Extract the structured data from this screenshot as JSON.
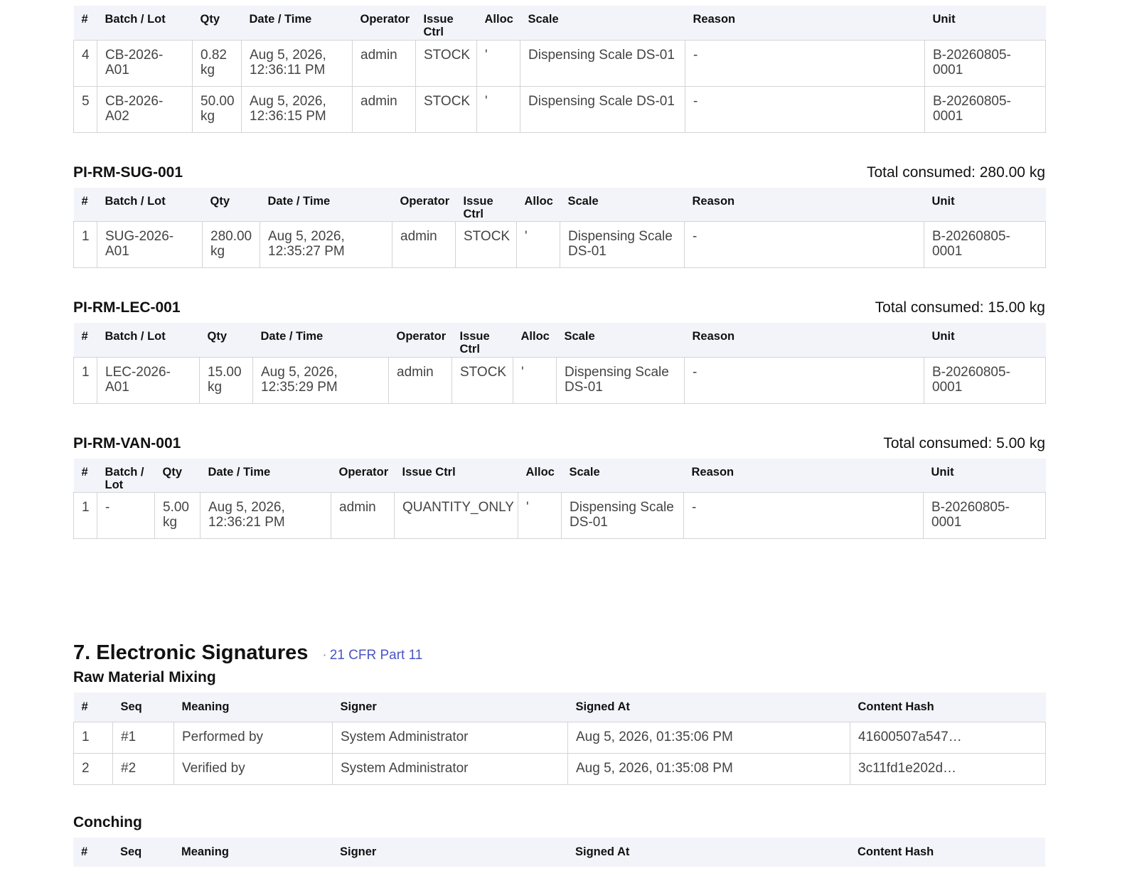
{
  "continued_table": {
    "headers": [
      "#",
      "Batch / Lot",
      "Qty",
      "Date / Time",
      "Operator",
      "Issue Ctrl",
      "Alloc",
      "Scale",
      "Reason",
      "Unit"
    ],
    "rows": [
      [
        "4",
        "CB-2026-A01",
        "0.82 kg",
        "Aug 5, 2026, 12:36:11 PM",
        "admin",
        "STOCK",
        "'",
        "Dispensing Scale DS-01",
        "-",
        "B-20260805-0001"
      ],
      [
        "5",
        "CB-2026-A02",
        "50.00 kg",
        "Aug 5, 2026, 12:36:15 PM",
        "admin",
        "STOCK",
        "'",
        "Dispensing Scale DS-01",
        "-",
        "B-20260805-0001"
      ]
    ]
  },
  "materials": [
    {
      "code": "PI-RM-SUG-001",
      "total": "Total consumed: 280.00 kg",
      "headers": [
        "#",
        "Batch / Lot",
        "Qty",
        "Date / Time",
        "Operator",
        "Issue Ctrl",
        "Alloc",
        "Scale",
        "Reason",
        "Unit"
      ],
      "rows": [
        [
          "1",
          "SUG-2026-A01",
          "280.00 kg",
          "Aug 5, 2026, 12:35:27 PM",
          "admin",
          "STOCK",
          "'",
          "Dispensing Scale DS-01",
          "-",
          "B-20260805-0001"
        ]
      ]
    },
    {
      "code": "PI-RM-LEC-001",
      "total": "Total consumed: 15.00 kg",
      "headers": [
        "#",
        "Batch / Lot",
        "Qty",
        "Date / Time",
        "Operator",
        "Issue Ctrl",
        "Alloc",
        "Scale",
        "Reason",
        "Unit"
      ],
      "rows": [
        [
          "1",
          "LEC-2026-A01",
          "15.00 kg",
          "Aug 5, 2026, 12:35:29 PM",
          "admin",
          "STOCK",
          "'",
          "Dispensing Scale DS-01",
          "-",
          "B-20260805-0001"
        ]
      ]
    },
    {
      "code": "PI-RM-VAN-001",
      "total": "Total consumed: 5.00 kg",
      "headers": [
        "#",
        "Batch / Lot",
        "Qty",
        "Date / Time",
        "Operator",
        "Issue Ctrl",
        "Alloc",
        "Scale",
        "Reason",
        "Unit"
      ],
      "rows": [
        [
          "1",
          "-",
          "5.00 kg",
          "Aug 5, 2026, 12:36:21 PM",
          "admin",
          "QUANTITY_ONLY",
          "'",
          "Dispensing Scale DS-01",
          "-",
          "B-20260805-0001"
        ]
      ]
    }
  ],
  "signatures": {
    "title": "7. Electronic Signatures",
    "badge_separator": "·",
    "badge": "21 CFR Part 11",
    "headers": [
      "#",
      "Seq",
      "Meaning",
      "Signer",
      "Signed At",
      "Content Hash"
    ],
    "groups": [
      {
        "name": "Raw Material Mixing",
        "rows": [
          [
            "1",
            "#1",
            "Performed by",
            "System Administrator",
            "Aug 5, 2026, 01:35:06 PM",
            "41600507a547…"
          ],
          [
            "2",
            "#2",
            "Verified by",
            "System Administrator",
            "Aug 5, 2026, 01:35:08 PM",
            "3c11fd1e202d…"
          ]
        ]
      },
      {
        "name": "Conching",
        "rows": []
      }
    ]
  }
}
